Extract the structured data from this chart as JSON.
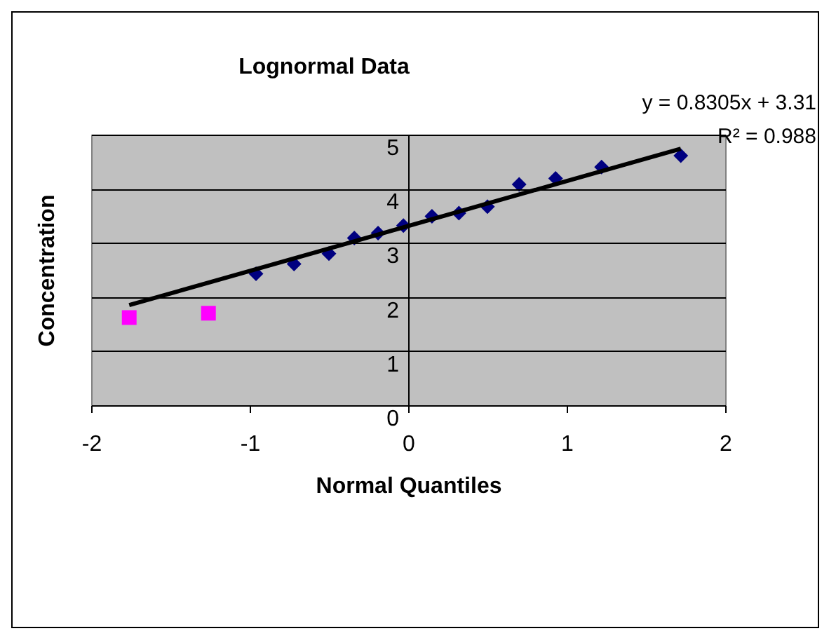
{
  "chart_data": {
    "type": "scatter",
    "title": "Lognormal Data",
    "xlabel": "Normal Quantiles",
    "ylabel": "Concentration",
    "annotations": [
      "y = 0.8305x + 3.31",
      "R² = 0.988"
    ],
    "series": [
      {
        "color": "#000080",
        "marker": "diamond",
        "x": [
          -0.96,
          -0.72,
          -0.5,
          -0.34,
          -0.19,
          -0.03,
          0.15,
          0.32,
          0.5,
          0.7,
          0.93,
          1.22,
          1.72
        ],
        "values": [
          2.43,
          2.61,
          2.8,
          3.09,
          3.18,
          3.32,
          3.49,
          3.55,
          3.67,
          4.08,
          4.19,
          4.4,
          4.61
        ]
      },
      {
        "color": "#ff00ff",
        "marker": "square",
        "x": [
          -1.76,
          -1.26
        ],
        "values": [
          1.62,
          1.7
        ]
      },
      {
        "type": "line",
        "color": "#000000",
        "marker": "none",
        "x": [
          -1.76,
          1.72
        ],
        "values": [
          1.85,
          4.74
        ]
      }
    ],
    "xlim": [
      -2,
      2
    ],
    "xticks": [
      {
        "value": -2,
        "label": "-2"
      },
      {
        "value": -1,
        "label": "-1"
      },
      0,
      1,
      2
    ],
    "ylim": [
      0,
      5
    ],
    "yticks": [
      0,
      1,
      2,
      3,
      4,
      5
    ],
    "grid": "y",
    "legend": false
  }
}
